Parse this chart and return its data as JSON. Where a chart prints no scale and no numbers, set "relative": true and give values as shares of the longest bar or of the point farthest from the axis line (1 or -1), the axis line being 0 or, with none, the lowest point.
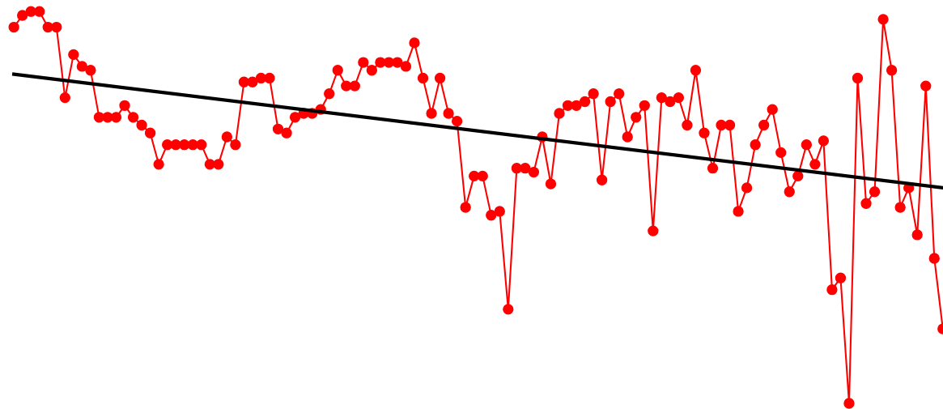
{
  "chart_data": {
    "type": "line",
    "relative": true,
    "tick_labels": false,
    "legend": false,
    "categories": [
      null,
      null,
      null,
      null,
      null,
      null,
      null,
      null,
      null,
      null,
      null,
      null,
      null,
      null,
      null,
      null,
      null,
      null,
      null,
      null,
      null,
      null,
      null,
      null,
      null,
      null,
      null,
      null,
      null,
      null,
      null,
      null,
      null,
      null,
      null,
      null,
      null,
      null,
      null,
      null,
      null,
      null,
      null,
      null,
      null,
      null,
      null,
      null,
      null,
      null,
      null,
      null,
      null,
      null,
      null,
      null,
      null,
      null,
      null,
      null,
      null,
      null,
      null,
      null,
      null,
      null,
      null,
      null,
      null,
      null,
      null,
      null,
      null,
      null,
      null,
      null,
      null,
      null,
      null,
      null,
      null,
      null,
      null,
      null,
      null,
      null,
      null,
      null,
      null,
      null,
      null,
      null,
      null,
      null,
      null,
      null,
      null,
      null,
      null,
      null,
      null,
      null,
      null,
      null,
      null,
      null,
      null,
      null,
      null,
      null
    ],
    "series": [
      {
        "color": "#ff0000",
        "marker": "circle",
        "line_style": "solid",
        "values": [
          0.96,
          0.99,
          1.0,
          1.0,
          0.96,
          0.96,
          0.78,
          0.89,
          0.86,
          0.85,
          0.73,
          0.73,
          0.73,
          0.76,
          0.73,
          0.71,
          0.69,
          0.61,
          0.66,
          0.66,
          0.66,
          0.66,
          0.66,
          0.61,
          0.61,
          0.68,
          0.66,
          0.82,
          0.82,
          0.83,
          0.83,
          0.7,
          0.69,
          0.73,
          0.74,
          0.74,
          0.75,
          0.79,
          0.85,
          0.81,
          0.81,
          0.87,
          0.85,
          0.87,
          0.87,
          0.87,
          0.86,
          0.92,
          0.83,
          0.74,
          0.83,
          0.74,
          0.72,
          0.5,
          0.58,
          0.58,
          0.48,
          0.49,
          0.24,
          0.6,
          0.6,
          0.59,
          0.68,
          0.56,
          0.74,
          0.76,
          0.76,
          0.77,
          0.79,
          0.57,
          0.77,
          0.79,
          0.68,
          0.73,
          0.76,
          0.44,
          0.78,
          0.77,
          0.78,
          0.71,
          0.85,
          0.69,
          0.6,
          0.71,
          0.71,
          0.49,
          0.55,
          0.66,
          0.71,
          0.75,
          0.64,
          0.54,
          0.58,
          0.66,
          0.61,
          0.67,
          0.29,
          0.32,
          0.0,
          0.83,
          0.51,
          0.54,
          0.98,
          0.85,
          0.5,
          0.55,
          0.43,
          0.81,
          0.37,
          0.19
        ]
      },
      {
        "color": "#000000",
        "marker": "none",
        "line_style": "solid",
        "values": [
          0.84,
          null,
          null,
          null,
          null,
          null,
          null,
          null,
          null,
          null,
          null,
          null,
          null,
          null,
          null,
          null,
          null,
          null,
          null,
          null,
          null,
          null,
          null,
          null,
          null,
          null,
          null,
          null,
          null,
          null,
          null,
          null,
          null,
          null,
          null,
          null,
          null,
          null,
          null,
          null,
          null,
          null,
          null,
          null,
          null,
          null,
          null,
          null,
          null,
          null,
          null,
          null,
          null,
          null,
          null,
          null,
          null,
          null,
          null,
          null,
          null,
          null,
          null,
          null,
          null,
          null,
          null,
          null,
          null,
          null,
          null,
          null,
          null,
          null,
          null,
          null,
          null,
          null,
          null,
          null,
          null,
          null,
          null,
          null,
          null,
          null,
          null,
          null,
          null,
          null,
          null,
          null,
          null,
          null,
          null,
          null,
          null,
          null,
          null,
          null,
          null,
          null,
          null,
          null,
          null,
          null,
          null,
          null,
          null,
          0.55
        ]
      }
    ]
  }
}
